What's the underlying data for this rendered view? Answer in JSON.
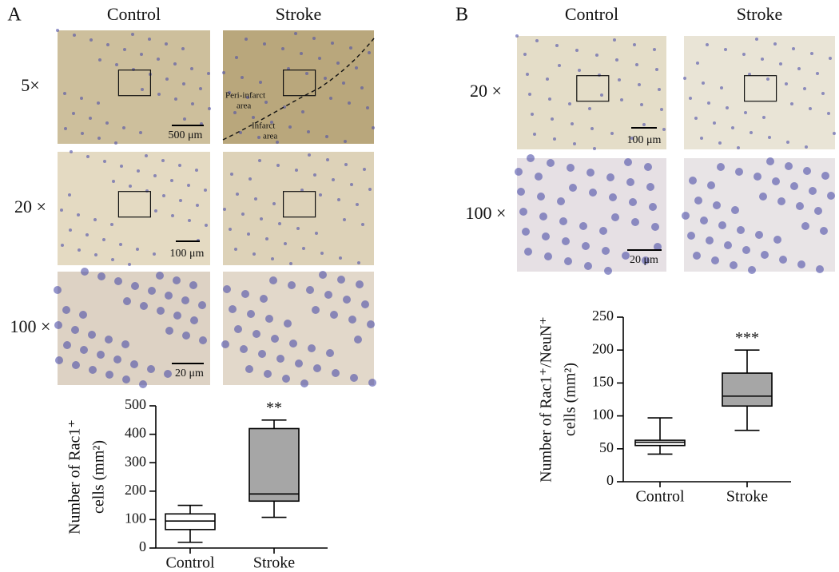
{
  "panels": [
    {
      "label": "A",
      "columns": [
        "Control",
        "Stroke"
      ],
      "rows": [
        "5×",
        "20 ×",
        "100 ×"
      ],
      "scale_bars": [
        "500 μm",
        "100 μm",
        "20 μm"
      ],
      "annotations": [
        [
          "Peri-infarct",
          "area"
        ],
        [
          "Infarct",
          "area"
        ]
      ],
      "chart": {
        "type": "box",
        "ylabel": [
          "Number of Rac1⁺",
          "cells (mm²)"
        ],
        "categories": [
          "Control",
          "Stroke"
        ],
        "colors": [
          "#ffffff",
          "#a6a6a6"
        ],
        "boxes": [
          {
            "min": 20,
            "q1": 65,
            "median": 95,
            "q3": 120,
            "max": 150
          },
          {
            "min": 108,
            "q1": 165,
            "median": 190,
            "q3": 420,
            "max": 450
          }
        ],
        "labels": [
          null,
          "**"
        ],
        "ylim": [
          0,
          500
        ],
        "yticks": [
          0,
          100,
          200,
          300,
          400,
          500
        ]
      }
    },
    {
      "label": "B",
      "columns": [
        "Control",
        "Stroke"
      ],
      "rows": [
        "20 ×",
        "100 ×"
      ],
      "scale_bars": [
        "100 μm",
        "20 μm"
      ],
      "annotations": [],
      "chart": {
        "type": "box",
        "ylabel": [
          "Number of Rac1⁺/NeuN⁺",
          "cells (mm²)"
        ],
        "categories": [
          "Control",
          "Stroke"
        ],
        "colors": [
          "#ffffff",
          "#a6a6a6"
        ],
        "boxes": [
          {
            "min": 42,
            "q1": 55,
            "median": 60,
            "q3": 63,
            "max": 97
          },
          {
            "min": 78,
            "q1": 115,
            "median": 130,
            "q3": 165,
            "max": 200
          }
        ],
        "labels": [
          null,
          "***"
        ],
        "ylim": [
          0,
          250
        ],
        "yticks": [
          0,
          50,
          100,
          150,
          200,
          250
        ]
      }
    }
  ]
}
